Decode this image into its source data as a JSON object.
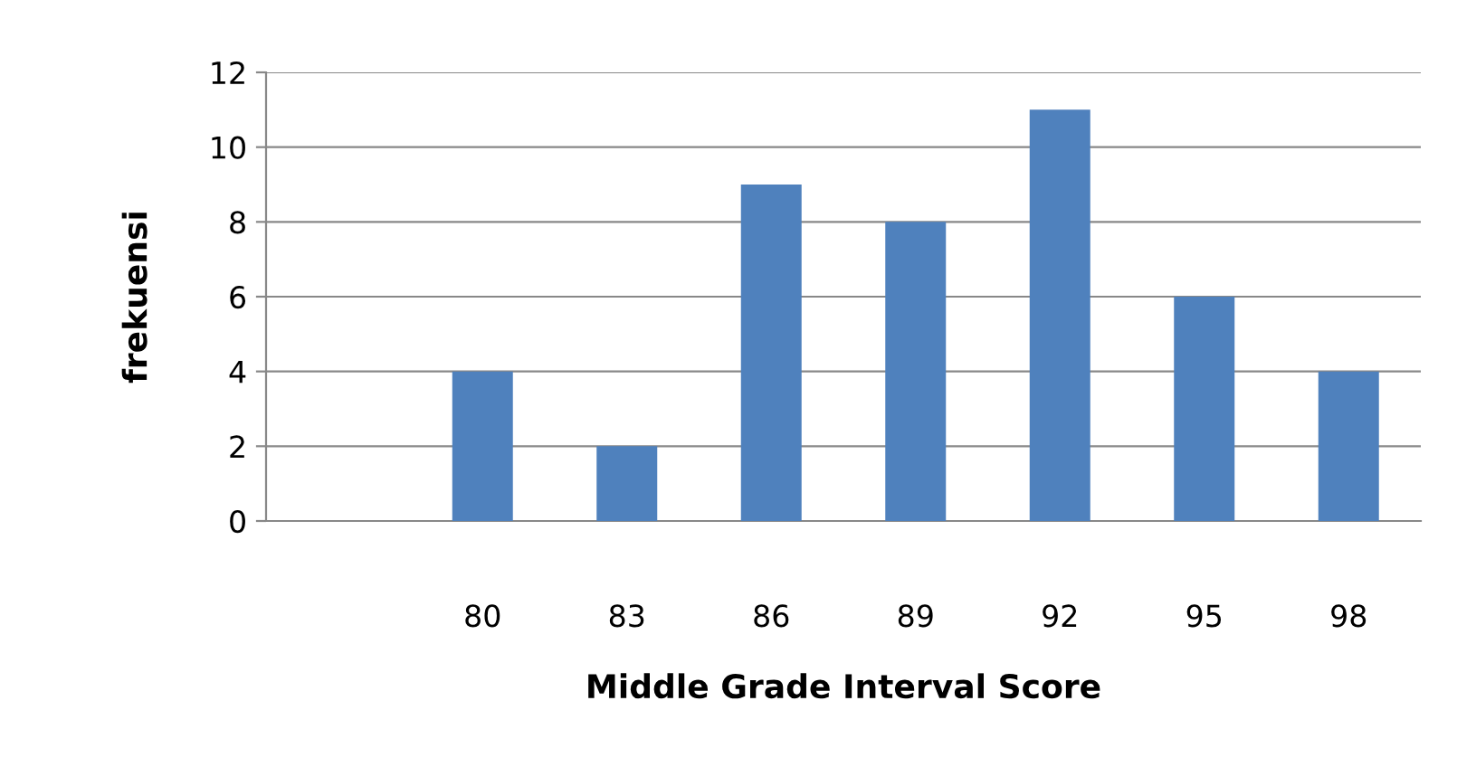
{
  "chart_data": {
    "type": "bar",
    "xlabel": "Middle Grade Interval Score",
    "ylabel": "frekuensi",
    "categories": [
      null,
      "80",
      "83",
      "86",
      "89",
      "92",
      "95",
      "98"
    ],
    "values": [
      null,
      4,
      2,
      9,
      8,
      11,
      6,
      4
    ],
    "color": "#4f81bd",
    "ylim": [
      0,
      12
    ],
    "yticks": [
      0,
      2,
      4,
      6,
      8,
      10,
      12
    ],
    "grid": "y",
    "legend": false
  }
}
